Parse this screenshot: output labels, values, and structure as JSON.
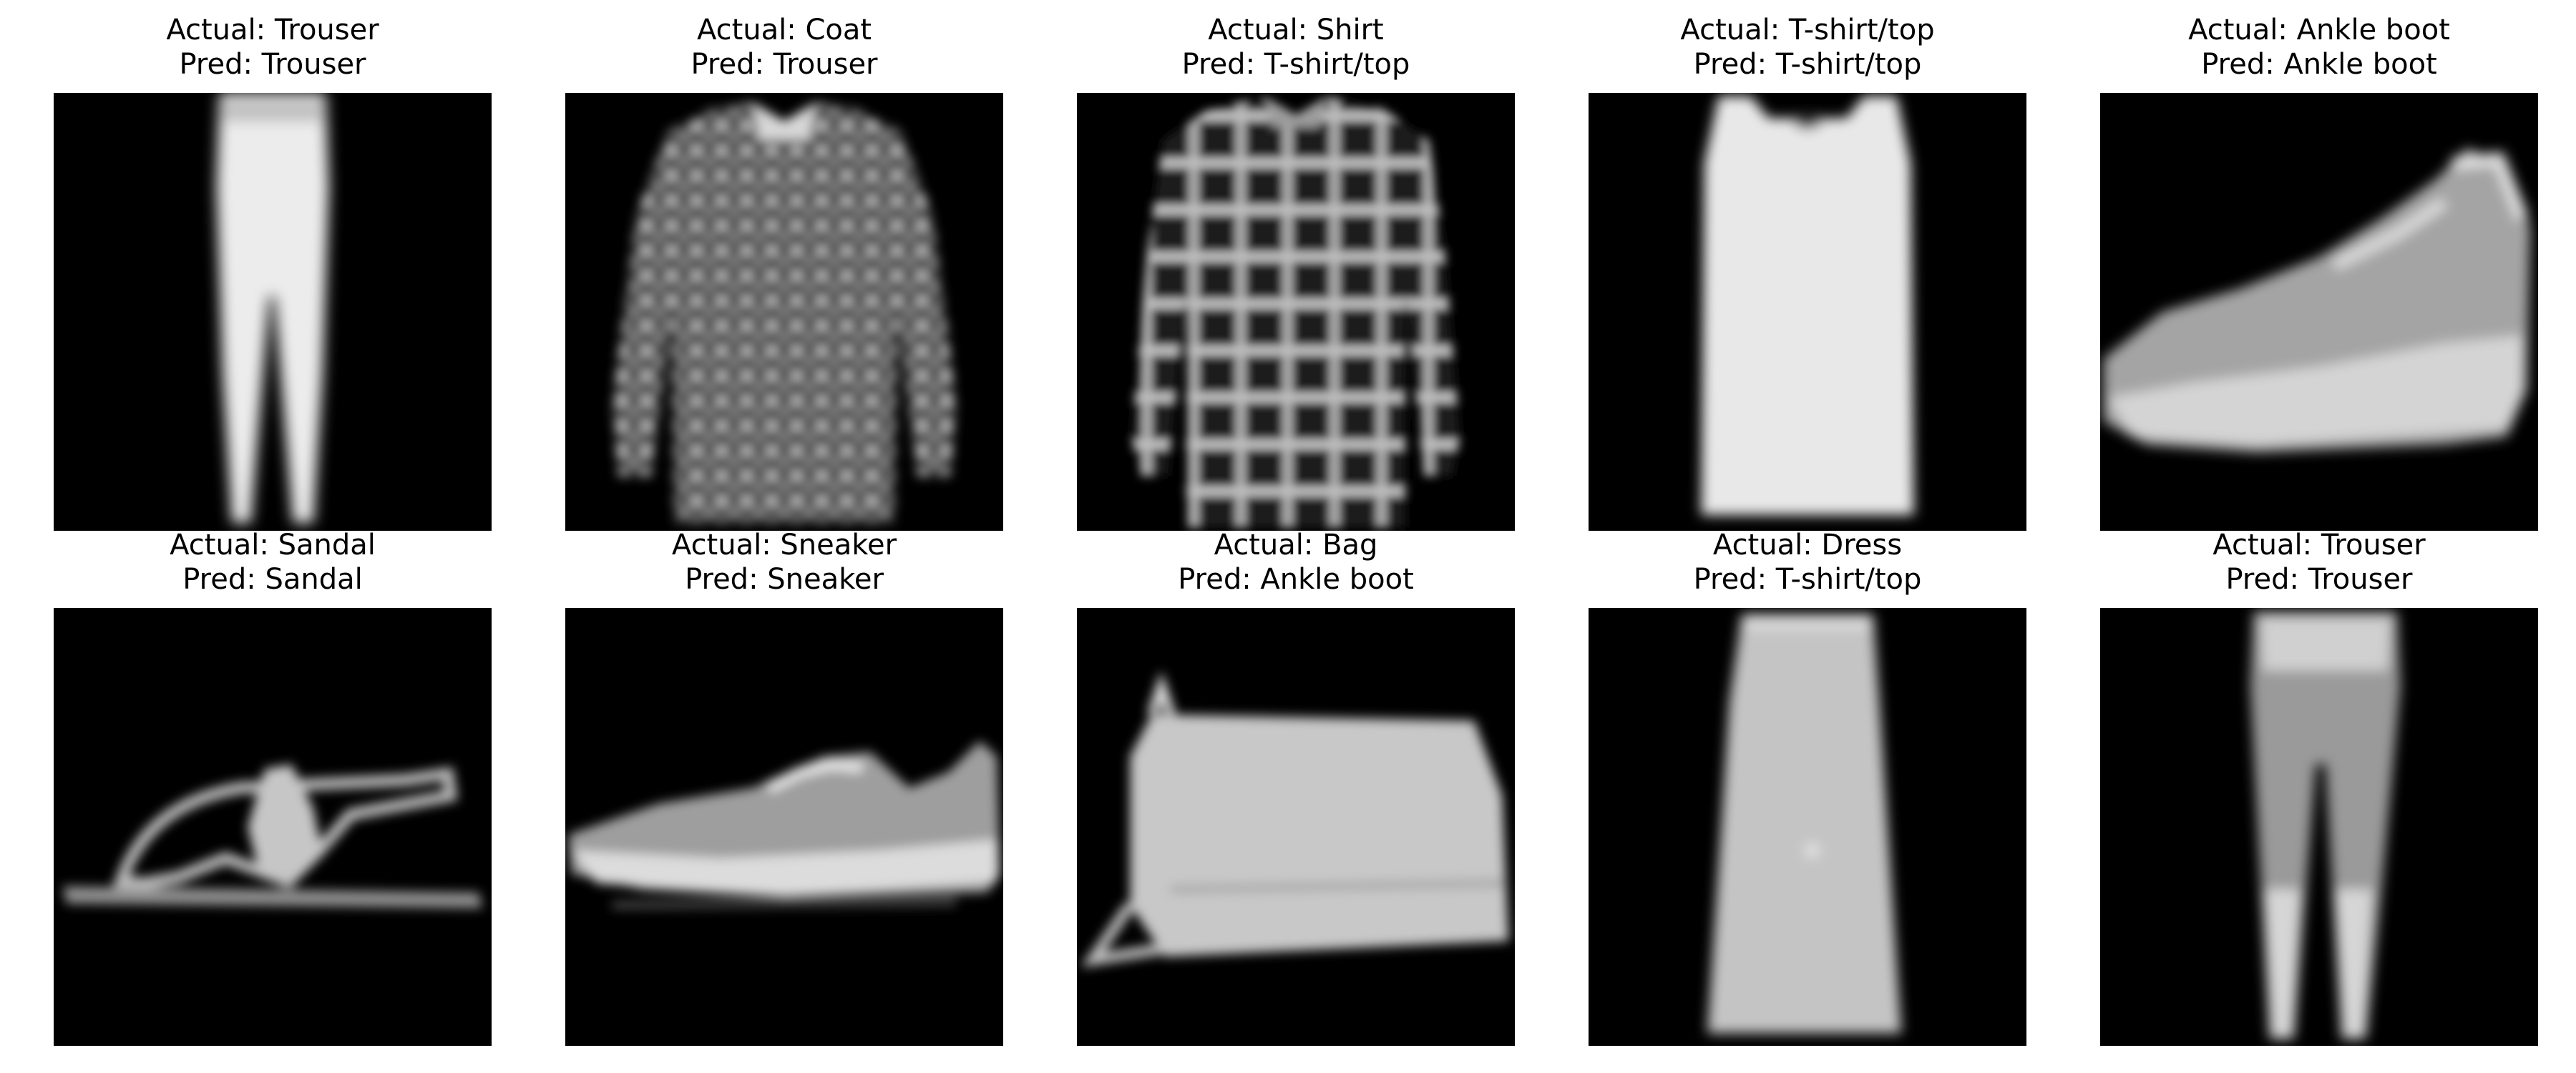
{
  "figure": {
    "panels": [
      {
        "actual": "Actual: Trouser",
        "pred": "Pred: Trouser",
        "item": "trouser-image"
      },
      {
        "actual": "Actual: Coat",
        "pred": "Pred: Trouser",
        "item": "coat-image"
      },
      {
        "actual": "Actual: Shirt",
        "pred": "Pred: T-shirt/top",
        "item": "shirt-image"
      },
      {
        "actual": "Actual: T-shirt/top",
        "pred": "Pred: T-shirt/top",
        "item": "tank-top-image"
      },
      {
        "actual": "Actual: Ankle boot",
        "pred": "Pred: Ankle boot",
        "item": "ankle-boot-image"
      },
      {
        "actual": "Actual: Sandal",
        "pred": "Pred: Sandal",
        "item": "sandal-image"
      },
      {
        "actual": "Actual: Sneaker",
        "pred": "Pred: Sneaker",
        "item": "sneaker-image"
      },
      {
        "actual": "Actual: Bag",
        "pred": "Pred: Ankle boot",
        "item": "bag-image"
      },
      {
        "actual": "Actual: Dress",
        "pred": "Pred: T-shirt/top",
        "item": "dress-image"
      },
      {
        "actual": "Actual: Trouser",
        "pred": "Pred: Trouser",
        "item": "trouser-image"
      }
    ]
  },
  "colors": {
    "background": "#ffffff",
    "image_background": "#000000",
    "garment_light": "#e6e6e6",
    "garment_mid": "#9a9a9a"
  }
}
